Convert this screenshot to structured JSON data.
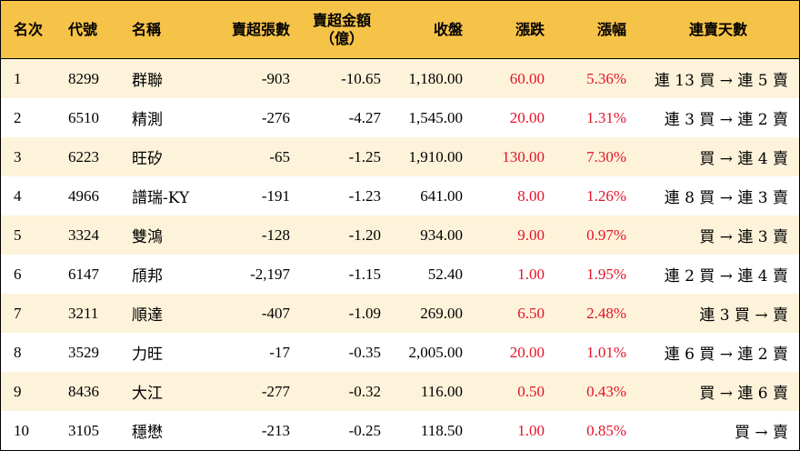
{
  "headers": {
    "rank": "名次",
    "code": "代號",
    "name": "名稱",
    "sell_lots": "賣超張數",
    "sell_amount_line1": "賣超金額",
    "sell_amount_line2": "（億）",
    "close": "收盤",
    "change": "漲跌",
    "pct": "漲幅",
    "streak": "連賣天數"
  },
  "rows": [
    {
      "rank": "1",
      "code": "8299",
      "name": "群聯",
      "sell_lots": "-903",
      "sell_amount": "-10.65",
      "close": "1,180.00",
      "change": "60.00",
      "pct": "5.36%",
      "streak": "連 13 買 → 連 5 賣"
    },
    {
      "rank": "2",
      "code": "6510",
      "name": "精測",
      "sell_lots": "-276",
      "sell_amount": "-4.27",
      "close": "1,545.00",
      "change": "20.00",
      "pct": "1.31%",
      "streak": "連 3 買 → 連 2 賣"
    },
    {
      "rank": "3",
      "code": "6223",
      "name": "旺矽",
      "sell_lots": "-65",
      "sell_amount": "-1.25",
      "close": "1,910.00",
      "change": "130.00",
      "pct": "7.30%",
      "streak": "買 → 連 4 賣"
    },
    {
      "rank": "4",
      "code": "4966",
      "name": "譜瑞-KY",
      "sell_lots": "-191",
      "sell_amount": "-1.23",
      "close": "641.00",
      "change": "8.00",
      "pct": "1.26%",
      "streak": "連 8 買 → 連 3 賣"
    },
    {
      "rank": "5",
      "code": "3324",
      "name": "雙鴻",
      "sell_lots": "-128",
      "sell_amount": "-1.20",
      "close": "934.00",
      "change": "9.00",
      "pct": "0.97%",
      "streak": "買 → 連 3 賣"
    },
    {
      "rank": "6",
      "code": "6147",
      "name": "頎邦",
      "sell_lots": "-2,197",
      "sell_amount": "-1.15",
      "close": "52.40",
      "change": "1.00",
      "pct": "1.95%",
      "streak": "連 2 買 → 連 4 賣"
    },
    {
      "rank": "7",
      "code": "3211",
      "name": "順達",
      "sell_lots": "-407",
      "sell_amount": "-1.09",
      "close": "269.00",
      "change": "6.50",
      "pct": "2.48%",
      "streak": "連 3 買 → 賣"
    },
    {
      "rank": "8",
      "code": "3529",
      "name": "力旺",
      "sell_lots": "-17",
      "sell_amount": "-0.35",
      "close": "2,005.00",
      "change": "20.00",
      "pct": "1.01%",
      "streak": "連 6 買 → 連 2 賣"
    },
    {
      "rank": "9",
      "code": "8436",
      "name": "大江",
      "sell_lots": "-277",
      "sell_amount": "-0.32",
      "close": "116.00",
      "change": "0.50",
      "pct": "0.43%",
      "streak": "買 → 連 6 賣"
    },
    {
      "rank": "10",
      "code": "3105",
      "name": "穩懋",
      "sell_lots": "-213",
      "sell_amount": "-0.25",
      "close": "118.50",
      "change": "1.00",
      "pct": "0.85%",
      "streak": "買 → 賣"
    }
  ],
  "colors": {
    "header_bg": "#f6c349",
    "row_alt_bg": "#fdf3da",
    "up_red": "#e3122a"
  }
}
